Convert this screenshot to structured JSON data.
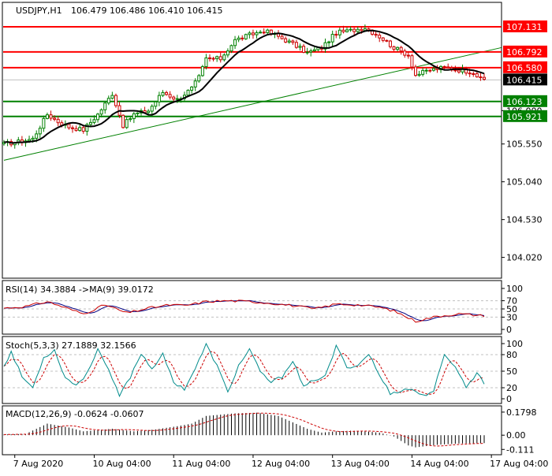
{
  "chart_data": {
    "type": "candlestick",
    "header": {
      "symbol": "USDJPY,H1",
      "ohlc": "106.479 106.486 106.410 106.415"
    },
    "price_panel": {
      "ylim": [
        103.75,
        107.45
      ],
      "tick_labels": [
        "107.131",
        "106.792",
        "106.580",
        "106.415",
        "106.123",
        "106.000",
        "105.921",
        "105.550",
        "105.040",
        "104.530",
        "104.020"
      ],
      "tick_values": [
        107.131,
        106.792,
        106.58,
        106.415,
        106.123,
        106.0,
        105.921,
        105.55,
        105.04,
        104.53,
        104.02
      ],
      "current_price": {
        "value": 106.415,
        "label": "106.415"
      },
      "resistance_levels": [
        {
          "value": 107.131,
          "label": "107.131",
          "color": "#ff0000"
        },
        {
          "value": 106.792,
          "label": "106.792",
          "color": "#ff0000"
        },
        {
          "value": 106.58,
          "label": "106.580",
          "color": "#ff0000"
        }
      ],
      "support_levels": [
        {
          "value": 106.123,
          "label": "106.123",
          "color": "#008000"
        },
        {
          "value": 105.921,
          "label": "105.921",
          "color": "#008000"
        }
      ],
      "trendline": {
        "start": [
          0,
          105.33
        ],
        "end": [
          136,
          106.85
        ],
        "color": "#008000"
      },
      "anchors": [
        [
          0,
          105.55
        ],
        [
          4,
          105.58
        ],
        [
          8,
          105.62
        ],
        [
          12,
          105.95
        ],
        [
          15,
          105.85
        ],
        [
          18,
          105.78
        ],
        [
          22,
          105.74
        ],
        [
          26,
          105.95
        ],
        [
          30,
          106.23
        ],
        [
          33,
          105.8
        ],
        [
          36,
          105.95
        ],
        [
          40,
          106.0
        ],
        [
          44,
          106.25
        ],
        [
          48,
          106.15
        ],
        [
          52,
          106.3
        ],
        [
          54,
          106.45
        ],
        [
          56,
          106.7
        ],
        [
          60,
          106.7
        ],
        [
          64,
          106.95
        ],
        [
          68,
          107.02
        ],
        [
          72,
          107.08
        ],
        [
          76,
          107.0
        ],
        [
          80,
          106.9
        ],
        [
          84,
          106.78
        ],
        [
          88,
          106.85
        ],
        [
          92,
          107.05
        ],
        [
          96,
          107.08
        ],
        [
          100,
          107.12
        ],
        [
          104,
          107.0
        ],
        [
          108,
          106.85
        ],
        [
          112,
          106.75
        ],
        [
          114,
          106.48
        ],
        [
          118,
          106.55
        ],
        [
          122,
          106.58
        ],
        [
          126,
          106.55
        ],
        [
          130,
          106.52
        ],
        [
          132,
          106.42
        ]
      ]
    },
    "rsi_panel": {
      "title": "RSI(14) 34.3884 ->MA(9) 39.0172",
      "ylim": [
        0,
        100
      ],
      "tick_labels": [
        "100",
        "70",
        "50",
        "30",
        "0"
      ],
      "tick_values": [
        100,
        70,
        50,
        30,
        0
      ],
      "level_lines": [
        70,
        50,
        30
      ],
      "anchors": [
        [
          0,
          52
        ],
        [
          6,
          56
        ],
        [
          12,
          68
        ],
        [
          18,
          50
        ],
        [
          22,
          38
        ],
        [
          28,
          60
        ],
        [
          34,
          40
        ],
        [
          40,
          52
        ],
        [
          46,
          60
        ],
        [
          50,
          58
        ],
        [
          56,
          68
        ],
        [
          62,
          70
        ],
        [
          68,
          68
        ],
        [
          74,
          64
        ],
        [
          80,
          58
        ],
        [
          86,
          50
        ],
        [
          92,
          62
        ],
        [
          98,
          60
        ],
        [
          104,
          54
        ],
        [
          108,
          45
        ],
        [
          114,
          20
        ],
        [
          120,
          32
        ],
        [
          126,
          38
        ],
        [
          132,
          34
        ]
      ]
    },
    "stoch_panel": {
      "title": "Stoch(5,3,3) 27.1889 32.1566",
      "ylim": [
        0,
        100
      ],
      "tick_labels": [
        "100",
        "80",
        "50",
        "20",
        "0"
      ],
      "tick_values": [
        100,
        80,
        50,
        20,
        0
      ],
      "level_lines": [
        80,
        50,
        20
      ],
      "anchors": [
        [
          0,
          60
        ],
        [
          2,
          85
        ],
        [
          5,
          40
        ],
        [
          8,
          20
        ],
        [
          11,
          75
        ],
        [
          14,
          88
        ],
        [
          17,
          38
        ],
        [
          20,
          25
        ],
        [
          23,
          45
        ],
        [
          26,
          92
        ],
        [
          29,
          50
        ],
        [
          32,
          5
        ],
        [
          35,
          40
        ],
        [
          38,
          82
        ],
        [
          41,
          55
        ],
        [
          44,
          80
        ],
        [
          47,
          30
        ],
        [
          50,
          18
        ],
        [
          53,
          55
        ],
        [
          56,
          98
        ],
        [
          59,
          60
        ],
        [
          62,
          12
        ],
        [
          65,
          60
        ],
        [
          68,
          90
        ],
        [
          71,
          48
        ],
        [
          74,
          30
        ],
        [
          77,
          40
        ],
        [
          80,
          70
        ],
        [
          83,
          20
        ],
        [
          86,
          35
        ],
        [
          89,
          40
        ],
        [
          92,
          95
        ],
        [
          95,
          58
        ],
        [
          98,
          60
        ],
        [
          101,
          82
        ],
        [
          104,
          42
        ],
        [
          107,
          10
        ],
        [
          110,
          15
        ],
        [
          113,
          18
        ],
        [
          116,
          5
        ],
        [
          119,
          15
        ],
        [
          122,
          78
        ],
        [
          125,
          60
        ],
        [
          128,
          20
        ],
        [
          131,
          48
        ],
        [
          133,
          27
        ]
      ]
    },
    "macd_panel": {
      "title": "MACD(12,26,9) -0.0624 -0.0607",
      "ylim": [
        -0.14,
        0.21
      ],
      "tick_labels": [
        "0.1798",
        "0.00",
        "-0.111"
      ],
      "tick_values": [
        0.1798,
        0.0,
        -0.111
      ],
      "anchors": [
        [
          0,
          0.005
        ],
        [
          6,
          0.01
        ],
        [
          12,
          0.09
        ],
        [
          18,
          0.06
        ],
        [
          22,
          0.03
        ],
        [
          26,
          0.04
        ],
        [
          30,
          0.05
        ],
        [
          36,
          0.03
        ],
        [
          42,
          0.045
        ],
        [
          48,
          0.07
        ],
        [
          52,
          0.09
        ],
        [
          56,
          0.15
        ],
        [
          60,
          0.16
        ],
        [
          64,
          0.17
        ],
        [
          70,
          0.175
        ],
        [
          76,
          0.15
        ],
        [
          80,
          0.1
        ],
        [
          84,
          0.05
        ],
        [
          88,
          0.02
        ],
        [
          92,
          0.03
        ],
        [
          96,
          0.035
        ],
        [
          100,
          0.03
        ],
        [
          104,
          0.02
        ],
        [
          108,
          -0.01
        ],
        [
          112,
          -0.08
        ],
        [
          114,
          -0.095
        ],
        [
          120,
          -0.075
        ],
        [
          126,
          -0.065
        ],
        [
          132,
          -0.062
        ]
      ]
    },
    "x_axis": {
      "tick_labels": [
        "7 Aug 2020",
        "10 Aug 04:00",
        "11 Aug 04:00",
        "12 Aug 04:00",
        "13 Aug 04:00",
        "14 Aug 04:00",
        "17 Aug 04:00"
      ],
      "tick_bars": [
        3,
        25,
        47,
        69,
        91,
        113,
        135
      ]
    },
    "colors": {
      "candle_bull": "#008000",
      "candle_bear": "#cc0000",
      "ma_line": "#000000",
      "rsi_line": "#cc0000",
      "rsi_ma_line": "#000080",
      "stoch_main": "#008b8b",
      "stoch_signal": "#cc0000",
      "macd_hist": "#000000",
      "macd_signal": "#cc0000",
      "current_price_box": "#000000",
      "grid": "#c0c0c0"
    }
  }
}
